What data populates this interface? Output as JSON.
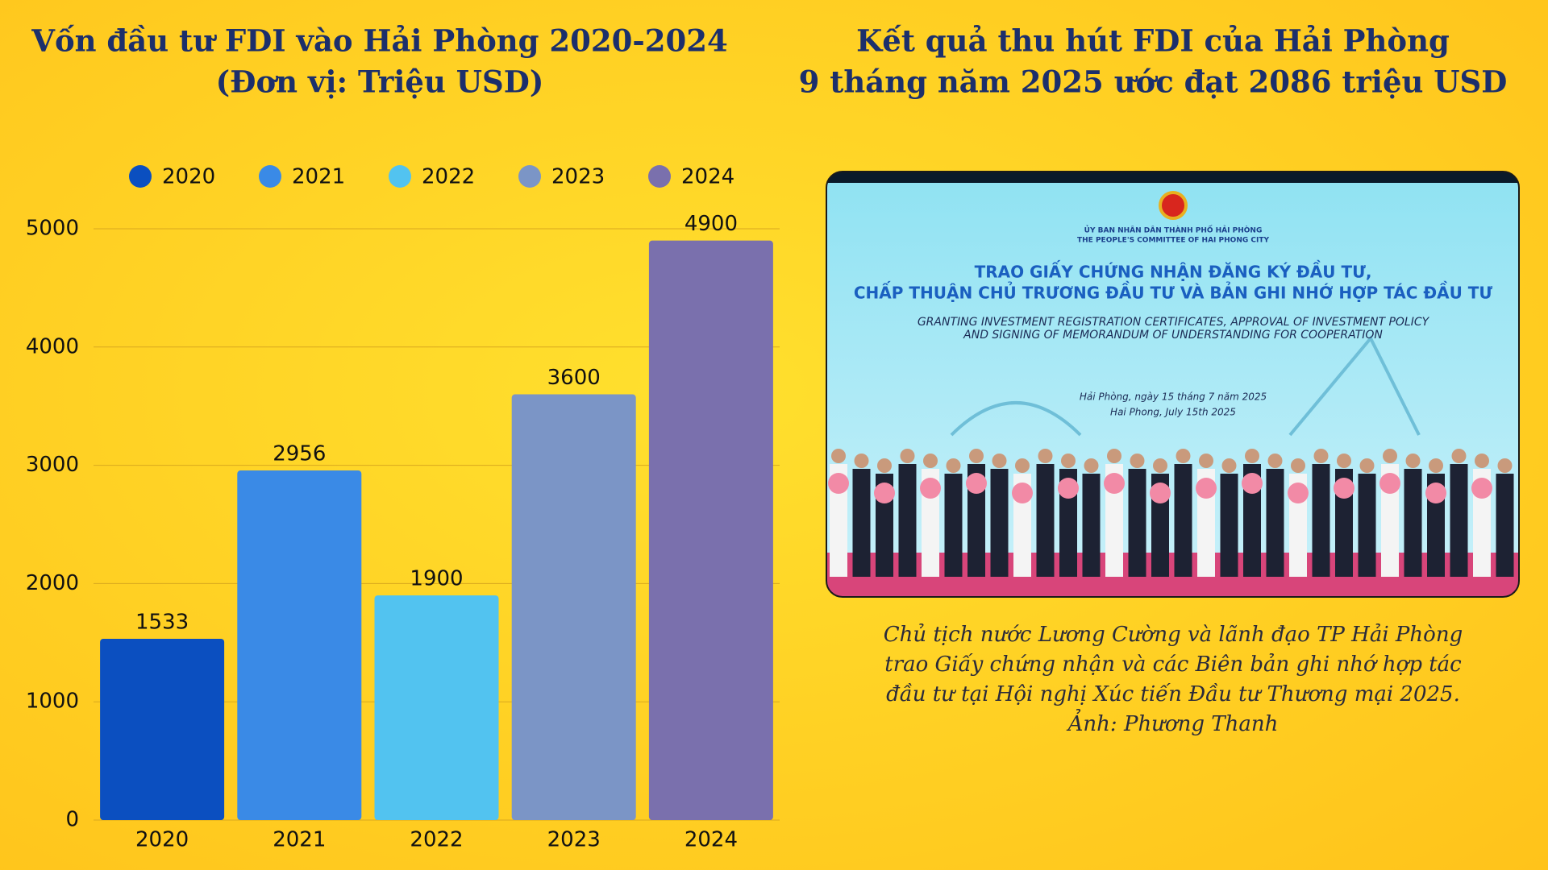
{
  "chart_data": {
    "type": "bar",
    "title": "Vốn đầu tư FDI vào Hải Phòng 2020-2024",
    "subtitle": "(Đơn vị: Triệu USD)",
    "categories": [
      "2020",
      "2021",
      "2022",
      "2023",
      "2024"
    ],
    "values": [
      1533,
      2956,
      1900,
      3600,
      4900
    ],
    "colors": [
      "#0b4fc0",
      "#3a8ae6",
      "#52c3f0",
      "#7b95c6",
      "#7a70ad"
    ],
    "ylim": [
      0,
      5000
    ],
    "yticks": [
      0,
      1000,
      2000,
      3000,
      4000,
      5000
    ],
    "grid": true,
    "legend": "top"
  },
  "right_panel": {
    "title": [
      "Kết quả thu hút FDI của Hải Phòng",
      "9 tháng năm 2025 ước đạt 2086 triệu USD"
    ],
    "photo_texts": [
      "ỦY BAN NHÂN DÂN THÀNH PHỐ HẢI PHÒNG",
      "THE PEOPLE'S COMMITTEE OF HAI PHONG CITY",
      "TRAO GIẤY CHỨNG NHẬN ĐĂNG KÝ ĐẦU TƯ,",
      "CHẤP THUẬN CHỦ TRƯƠNG ĐẦU TƯ VÀ BẢN GHI NHỚ HỢP TÁC ĐẦU TƯ",
      "GRANTING INVESTMENT REGISTRATION CERTIFICATES, APPROVAL OF INVESTMENT POLICY",
      "AND SIGNING OF MEMORANDUM OF UNDERSTANDING FOR COOPERATION",
      "Hải Phòng, ngày 15 tháng 7 năm 2025",
      "Hai Phong, July 15th 2025"
    ],
    "caption": [
      "Chủ tịch nước Lương Cường và lãnh đạo TP Hải Phòng",
      "trao Giấy chứng nhận và các Biên bản ghi nhớ hợp tác",
      "đầu tư tại Hội nghị Xúc tiến Đầu tư Thương mại 2025.",
      "Ảnh: Phương Thanh"
    ]
  }
}
